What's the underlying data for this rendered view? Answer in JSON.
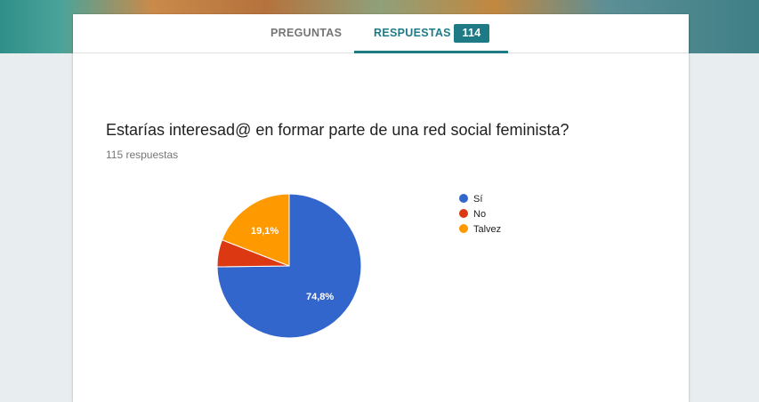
{
  "tabs": {
    "questions_label": "PREGUNTAS",
    "responses_label": "RESPUESTAS",
    "responses_badge": "114"
  },
  "question": {
    "title": "Estarías interesad@ en formar parte de una red social feminista?",
    "count_label": "115 respuestas"
  },
  "colors": {
    "accent": "#1e7b86"
  },
  "chart_data": {
    "type": "pie",
    "categories": [
      "Sí",
      "No",
      "Talvez"
    ],
    "values": [
      74.8,
      6.1,
      19.1
    ],
    "data_labels": [
      "74,8%",
      "",
      "19,1%"
    ],
    "colors": [
      "#3366cc",
      "#dc3912",
      "#ff9900"
    ],
    "legend_position": "right"
  }
}
